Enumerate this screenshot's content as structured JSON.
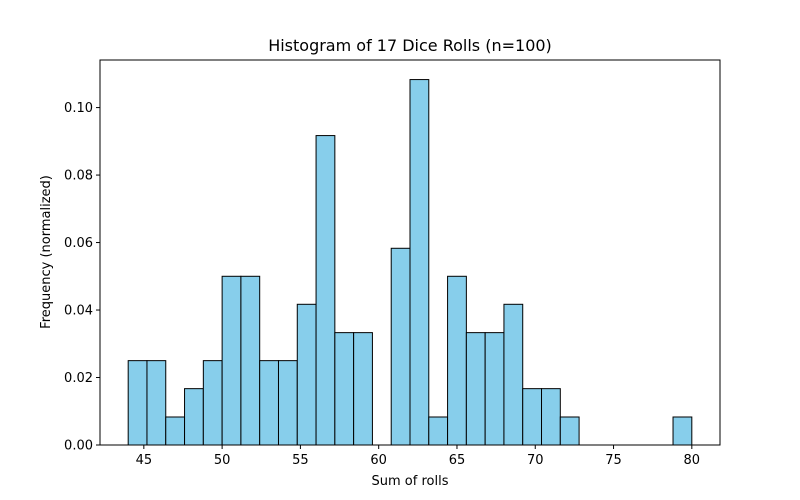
{
  "chart_data": {
    "type": "bar",
    "title": "Histogram of 17 Dice Rolls (n=100)",
    "xlabel": "Sum of rolls",
    "ylabel": "Frequency (normalized)",
    "xlim": [
      42.2,
      81.8
    ],
    "ylim": [
      0,
      0.1141
    ],
    "x_ticks": [
      45,
      50,
      55,
      60,
      65,
      70,
      75,
      80
    ],
    "x_tick_labels": [
      "45",
      "50",
      "55",
      "60",
      "65",
      "70",
      "75",
      "80"
    ],
    "y_ticks": [
      0,
      0.02,
      0.04,
      0.06,
      0.08,
      0.1
    ],
    "y_tick_labels": [
      "0.00",
      "0.02",
      "0.04",
      "0.06",
      "0.08",
      "0.10"
    ],
    "bin_edges": [
      44,
      45.2,
      46.4,
      47.6,
      48.8,
      50,
      51.2,
      52.4,
      53.6,
      54.8,
      56,
      57.2,
      58.4,
      59.6,
      60.8,
      62,
      63.2,
      64.4,
      65.6,
      66.8,
      68,
      69.2,
      70.4,
      71.6,
      72.8,
      74,
      75.2,
      76.4,
      77.6,
      78.8,
      80
    ],
    "values": [
      0.025,
      0.025,
      0.0083,
      0.0167,
      0.025,
      0.05,
      0.05,
      0.025,
      0.025,
      0.0417,
      0.0917,
      0.0333,
      0.0333,
      0,
      0.0583,
      0.1083,
      0.0083,
      0.05,
      0.0333,
      0.0333,
      0.0417,
      0.0167,
      0.0167,
      0.0083,
      0,
      0,
      0,
      0,
      0,
      0.0083
    ],
    "bar_color": "#87ceeb",
    "edge_color": "#000000",
    "grid": false
  }
}
